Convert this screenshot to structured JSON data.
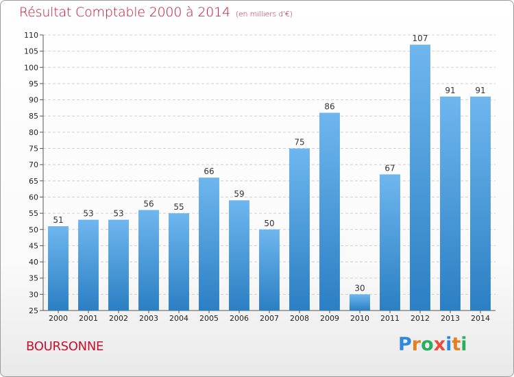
{
  "header": {
    "title": "Résultat Comptable 2000 à 2014",
    "subtitle": "(en milliers d'€)"
  },
  "footer": {
    "town": "BOURSONNE",
    "logo": [
      "P",
      "r",
      "o",
      "x",
      "i",
      "t",
      "i"
    ]
  },
  "colors": {
    "title": "#c8102e",
    "bar_top": "#6fb6ee",
    "bar_bottom": "#2b7fc3",
    "logo": [
      "#2e86de",
      "#e67e22",
      "#27ae60",
      "#e74c3c",
      "#2e86de",
      "#e67e22",
      "#27ae60"
    ]
  },
  "chart_data": {
    "type": "bar",
    "categories": [
      "2000",
      "2001",
      "2002",
      "2003",
      "2004",
      "2005",
      "2006",
      "2007",
      "2008",
      "2009",
      "2010",
      "2011",
      "2012",
      "2013",
      "2014"
    ],
    "values": [
      51,
      53,
      53,
      56,
      55,
      66,
      59,
      50,
      75,
      86,
      30,
      67,
      107,
      91,
      91
    ],
    "title": "Résultat Comptable 2000 à 2014",
    "subtitle": "(en milliers d'€)",
    "xlabel": "",
    "ylabel": "",
    "ylim": [
      25,
      110
    ],
    "yticks": [
      25,
      30,
      35,
      40,
      45,
      50,
      55,
      60,
      65,
      70,
      75,
      80,
      85,
      90,
      95,
      100,
      105,
      110
    ],
    "grid": true,
    "legend": "none"
  }
}
